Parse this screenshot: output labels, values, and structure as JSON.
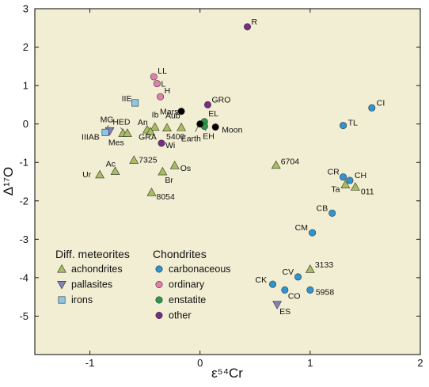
{
  "chart_data": {
    "type": "scatter",
    "xlabel": "ε⁵⁴Cr",
    "ylabel": "Δ¹⁷O",
    "xlim": [
      -1.5,
      2.0
    ],
    "ylim": [
      -6.0,
      3.0
    ],
    "x_ticks": [
      -1,
      0,
      1,
      2
    ],
    "y_ticks": [
      3,
      2,
      1,
      0,
      -1,
      -2,
      -3,
      -4,
      -5
    ],
    "grid": false,
    "background": "#f2eed3",
    "colors": {
      "achondrites": "#a8bd5f",
      "pallasites": "#7f82b6",
      "irons": "#8dc5e8",
      "carbonaceous": "#2e95d1",
      "ordinary": "#e07fa8",
      "enstatite": "#2a9a4a",
      "other": "#7b2a86",
      "planetary": "#000000"
    },
    "legend": {
      "placement": "bottom-left",
      "groups": [
        {
          "heading": "Diff. meteorites",
          "entries": [
            {
              "label": "achondrites",
              "shape": "triangle-up",
              "color_key": "achondrites"
            },
            {
              "label": "pallasites",
              "shape": "triangle-down",
              "color_key": "pallasites"
            },
            {
              "label": "irons",
              "shape": "square",
              "color_key": "irons"
            }
          ]
        },
        {
          "heading": "Chondrites",
          "entries": [
            {
              "label": "carbonaceous",
              "shape": "circle",
              "color_key": "carbonaceous"
            },
            {
              "label": "ordinary",
              "shape": "circle",
              "color_key": "ordinary"
            },
            {
              "label": "enstatite",
              "shape": "circle",
              "color_key": "enstatite"
            },
            {
              "label": "other",
              "shape": "circle",
              "color_key": "other"
            }
          ]
        }
      ]
    },
    "points": [
      {
        "label": "R",
        "x": 0.43,
        "y": 2.53,
        "group": "other",
        "shape": "circle"
      },
      {
        "label": "GRO",
        "x": 0.07,
        "y": 0.5,
        "group": "other",
        "shape": "circle"
      },
      {
        "label": "Wi",
        "x": -0.35,
        "y": -0.5,
        "group": "other",
        "shape": "circle"
      },
      {
        "label": "LL",
        "x": -0.42,
        "y": 1.23,
        "group": "ordinary",
        "shape": "circle"
      },
      {
        "label": "L",
        "x": -0.39,
        "y": 1.05,
        "group": "ordinary",
        "shape": "circle"
      },
      {
        "label": "H",
        "x": -0.36,
        "y": 0.71,
        "group": "ordinary",
        "shape": "circle"
      },
      {
        "label": "EL",
        "x": 0.04,
        "y": 0.06,
        "group": "enstatite",
        "shape": "circle"
      },
      {
        "label": "EH",
        "x": 0.04,
        "y": -0.06,
        "group": "enstatite",
        "shape": "circle"
      },
      {
        "label": "Mars",
        "x": -0.17,
        "y": 0.33,
        "group": "planetary",
        "shape": "circle"
      },
      {
        "label": "Earth",
        "x": 0.0,
        "y": 0.0,
        "group": "planetary",
        "shape": "circle"
      },
      {
        "label": "Moon",
        "x": 0.14,
        "y": -0.08,
        "group": "planetary",
        "shape": "circle"
      },
      {
        "label": "CI",
        "x": 1.56,
        "y": 0.42,
        "group": "carbonaceous",
        "shape": "circle"
      },
      {
        "label": "TL",
        "x": 1.3,
        "y": -0.04,
        "group": "carbonaceous",
        "shape": "circle"
      },
      {
        "label": "CR",
        "x": 1.3,
        "y": -1.38,
        "group": "carbonaceous",
        "shape": "circle"
      },
      {
        "label": "CH",
        "x": 1.36,
        "y": -1.47,
        "group": "carbonaceous",
        "shape": "circle"
      },
      {
        "label": "CB",
        "x": 1.2,
        "y": -2.32,
        "group": "carbonaceous",
        "shape": "circle"
      },
      {
        "label": "CM",
        "x": 1.02,
        "y": -2.83,
        "group": "carbonaceous",
        "shape": "circle"
      },
      {
        "label": "CV",
        "x": 0.89,
        "y": -3.98,
        "group": "carbonaceous",
        "shape": "circle"
      },
      {
        "label": "CK",
        "x": 0.66,
        "y": -4.17,
        "group": "carbonaceous",
        "shape": "circle"
      },
      {
        "label": "CO",
        "x": 0.77,
        "y": -4.32,
        "group": "carbonaceous",
        "shape": "circle"
      },
      {
        "label": "5958",
        "x": 1.0,
        "y": -4.32,
        "group": "carbonaceous",
        "shape": "circle"
      },
      {
        "label": "ES",
        "x": 0.7,
        "y": -4.7,
        "group": "pallasites",
        "shape": "triangle-down"
      },
      {
        "label": "MG",
        "x": -0.82,
        "y": -0.18,
        "group": "pallasites",
        "shape": "triangle-down"
      },
      {
        "label": "IIIAB",
        "x": -0.86,
        "y": -0.22,
        "group": "irons",
        "shape": "square"
      },
      {
        "label": "IIE",
        "x": -0.59,
        "y": 0.55,
        "group": "irons",
        "shape": "square"
      },
      {
        "label": "HED",
        "x": -0.7,
        "y": -0.24,
        "group": "achondrites",
        "shape": "triangle-up"
      },
      {
        "label": "Mes",
        "x": -0.66,
        "y": -0.24,
        "group": "achondrites",
        "shape": "triangle-up"
      },
      {
        "label": "An",
        "x": -0.48,
        "y": -0.15,
        "group": "achondrites",
        "shape": "triangle-up"
      },
      {
        "label": "Ib",
        "x": -0.41,
        "y": -0.08,
        "group": "achondrites",
        "shape": "triangle-up"
      },
      {
        "label": "GRA",
        "x": -0.45,
        "y": -0.2,
        "group": "achondrites",
        "shape": "triangle-up"
      },
      {
        "label": "Aub",
        "x": -0.3,
        "y": -0.1,
        "group": "achondrites",
        "shape": "triangle-up"
      },
      {
        "label": "5400",
        "x": -0.17,
        "y": -0.09,
        "group": "achondrites",
        "shape": "triangle-up"
      },
      {
        "label": "7325",
        "x": -0.6,
        "y": -0.94,
        "group": "achondrites",
        "shape": "triangle-up"
      },
      {
        "label": "Ur",
        "x": -0.91,
        "y": -1.32,
        "group": "achondrites",
        "shape": "triangle-up"
      },
      {
        "label": "Ac",
        "x": -0.77,
        "y": -1.23,
        "group": "achondrites",
        "shape": "triangle-up"
      },
      {
        "label": "Os",
        "x": -0.23,
        "y": -1.08,
        "group": "achondrites",
        "shape": "triangle-up"
      },
      {
        "label": "Br",
        "x": -0.34,
        "y": -1.24,
        "group": "achondrites",
        "shape": "triangle-up"
      },
      {
        "label": "8054",
        "x": -0.44,
        "y": -1.78,
        "group": "achondrites",
        "shape": "triangle-up"
      },
      {
        "label": "6704",
        "x": 0.69,
        "y": -1.07,
        "group": "achondrites",
        "shape": "triangle-up"
      },
      {
        "label": "Ta",
        "x": 1.32,
        "y": -1.58,
        "group": "achondrites",
        "shape": "triangle-up"
      },
      {
        "label": "011",
        "x": 1.41,
        "y": -1.64,
        "group": "achondrites",
        "shape": "triangle-up"
      },
      {
        "label": "3133",
        "x": 1.0,
        "y": -3.78,
        "group": "achondrites",
        "shape": "triangle-up"
      }
    ]
  }
}
